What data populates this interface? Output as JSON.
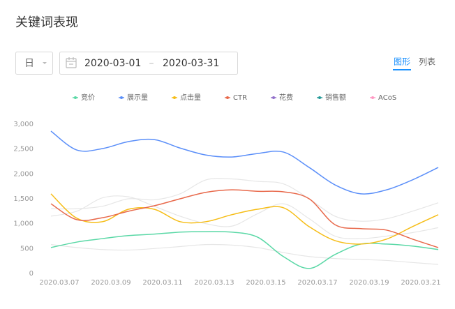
{
  "header": {
    "title": "关键词表现"
  },
  "controls": {
    "granularity": "日",
    "start_date": "2020-03-01",
    "separator": "–",
    "end_date": "2020-03-31"
  },
  "view_tabs": {
    "tabs": [
      "图形",
      "列表"
    ],
    "active": 0
  },
  "chart_data": {
    "type": "line",
    "categories": [
      "2020.03.07",
      null,
      "2020.03.09",
      null,
      "2020.03.11",
      null,
      "2020.03.13",
      null,
      "2020.03.15",
      null,
      "2020.03.17",
      null,
      "2020.03.19",
      null,
      "2020.03.21",
      null
    ],
    "series": [
      {
        "name": "竞价",
        "color": "#5ad8a6",
        "values": [
          520,
          630,
          700,
          760,
          790,
          830,
          840,
          830,
          730,
          340,
          100,
          380,
          590,
          590,
          550,
          480
        ]
      },
      {
        "name": "展示量",
        "color": "#5b8ff9",
        "values": [
          2860,
          2480,
          2510,
          2650,
          2690,
          2520,
          2380,
          2340,
          2410,
          2440,
          2130,
          1780,
          1600,
          1680,
          1880,
          2130
        ]
      },
      {
        "name": "点击量",
        "color": "#f6bd16",
        "values": [
          1600,
          1110,
          1040,
          1290,
          1290,
          1040,
          1040,
          1180,
          1290,
          1320,
          940,
          660,
          590,
          690,
          940,
          1180
        ]
      },
      {
        "name": "CTR",
        "color": "#e8684a",
        "values": [
          1400,
          1080,
          1120,
          1250,
          1360,
          1500,
          1630,
          1680,
          1650,
          1640,
          1500,
          980,
          900,
          870,
          690,
          520
        ]
      },
      {
        "name": "花费",
        "color": "#9270ca",
        "hidden": true,
        "values": [
          1300,
          1300,
          1350,
          1500,
          1480,
          1600,
          1880,
          1900,
          1850,
          1800,
          1500,
          1150,
          1050,
          1100,
          1250,
          1420
        ]
      },
      {
        "name": "销售额",
        "color": "#269a99",
        "hidden": true,
        "values": [
          1150,
          1250,
          1520,
          1540,
          1350,
          1150,
          1000,
          950,
          1200,
          1400,
          1100,
          750,
          700,
          750,
          820,
          920
        ]
      },
      {
        "name": "ACoS",
        "color": "#ff99c3",
        "hidden": true,
        "values": [
          580,
          520,
          480,
          470,
          500,
          540,
          580,
          570,
          520,
          420,
          340,
          300,
          280,
          260,
          220,
          180
        ]
      }
    ],
    "ylim": [
      0,
      3000
    ],
    "yticks": [
      0,
      500,
      {
        "value": 1000,
        "label": "1,000"
      },
      {
        "value": 1500,
        "label": "1,500"
      },
      {
        "value": 2000,
        "label": "2,000"
      },
      {
        "value": 2500,
        "label": "2,500"
      },
      {
        "value": 3000,
        "label": "3,000"
      }
    ],
    "grid": false
  }
}
